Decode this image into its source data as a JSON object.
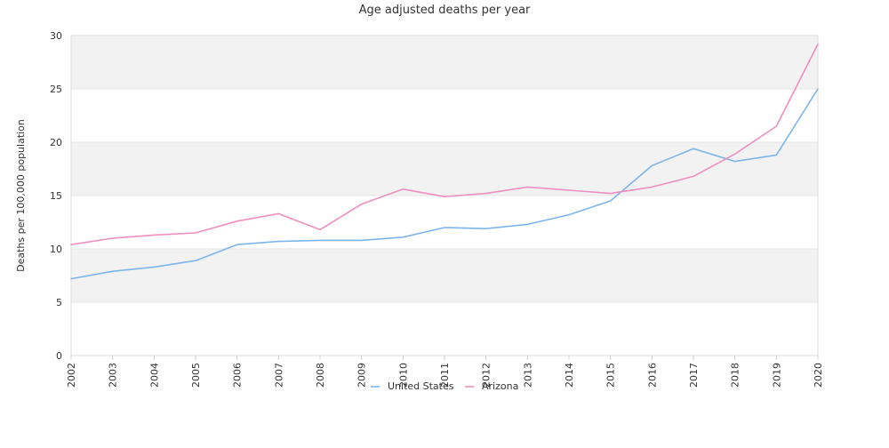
{
  "chart_data": {
    "type": "line",
    "title": "Age adjusted deaths per year",
    "xlabel": "",
    "ylabel": "Deaths per 100,000 population",
    "ylim": [
      0,
      30
    ],
    "yticks": [
      0,
      5,
      10,
      15,
      20,
      25,
      30
    ],
    "grid": "alternating horizontal bands",
    "legend_position": "bottom-center",
    "categories": [
      "2002",
      "2003",
      "2004",
      "2005",
      "2006",
      "2007",
      "2008",
      "2009",
      "2010",
      "2011",
      "2012",
      "2013",
      "2014",
      "2015",
      "2016",
      "2017",
      "2018",
      "2019",
      "2020"
    ],
    "series": [
      {
        "name": "United States",
        "color": "#7cb5ec",
        "values": [
          7.2,
          7.9,
          8.3,
          8.9,
          10.4,
          10.7,
          10.8,
          10.8,
          11.1,
          12.0,
          11.9,
          12.3,
          13.2,
          14.5,
          17.8,
          19.4,
          18.2,
          18.8,
          25.0
        ]
      },
      {
        "name": "Arizona",
        "color": "#ee8fc0",
        "values": [
          10.4,
          11.0,
          11.3,
          11.5,
          12.6,
          13.3,
          11.8,
          14.2,
          15.6,
          14.9,
          15.2,
          15.8,
          15.5,
          15.2,
          15.8,
          16.8,
          18.9,
          21.5,
          29.2
        ]
      }
    ]
  }
}
